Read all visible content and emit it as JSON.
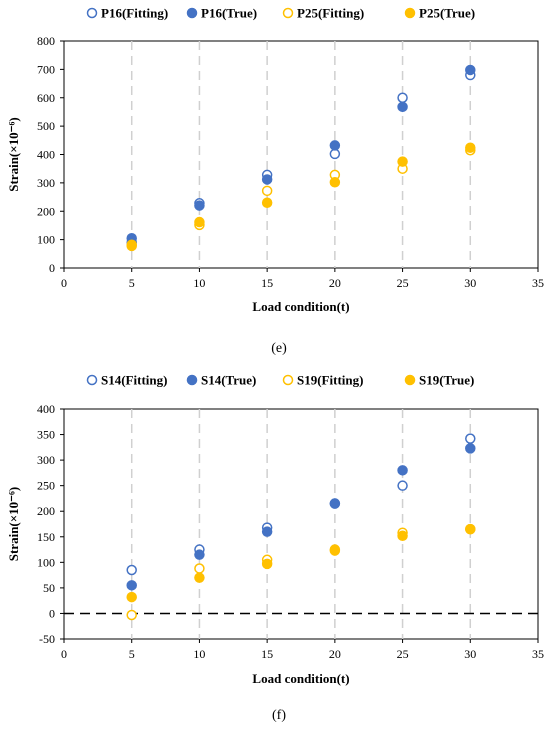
{
  "chart_data": [
    {
      "type": "scatter",
      "panel_label": "(e)",
      "xlabel": "Load condition(t)",
      "ylabel": "Strain(×10⁻⁶)",
      "xlim": [
        0,
        35
      ],
      "ylim": [
        0,
        800
      ],
      "x_ticks": [
        0,
        5,
        10,
        15,
        20,
        25,
        30,
        35
      ],
      "y_ticks": [
        0,
        100,
        200,
        300,
        400,
        500,
        600,
        700,
        800
      ],
      "legend_position": "top",
      "vertical_dashed_lines_at": [
        5,
        10,
        15,
        20,
        25,
        30
      ],
      "zero_dashed_line": false,
      "series": [
        {
          "name": "P16(Fitting)",
          "color": "#4472C4",
          "filled": false,
          "x": [
            5,
            10,
            15,
            20,
            25,
            30
          ],
          "y": [
            90,
            228,
            328,
            402,
            600,
            680
          ]
        },
        {
          "name": "P16(True)",
          "color": "#4472C4",
          "filled": true,
          "x": [
            5,
            10,
            15,
            20,
            25,
            30
          ],
          "y": [
            105,
            220,
            312,
            432,
            568,
            698
          ]
        },
        {
          "name": "P25(Fitting)",
          "color": "#FFC000",
          "filled": false,
          "x": [
            5,
            10,
            15,
            20,
            25,
            30
          ],
          "y": [
            82,
            152,
            272,
            328,
            350,
            415
          ]
        },
        {
          "name": "P25(True)",
          "color": "#FFC000",
          "filled": true,
          "x": [
            5,
            10,
            15,
            20,
            25,
            30
          ],
          "y": [
            78,
            162,
            230,
            302,
            375,
            424
          ]
        }
      ]
    },
    {
      "type": "scatter",
      "panel_label": "(f)",
      "xlabel": "Load condition(t)",
      "ylabel": "Strain(×10⁻⁶)",
      "xlim": [
        0,
        35
      ],
      "ylim": [
        -50,
        400
      ],
      "x_ticks": [
        0,
        5,
        10,
        15,
        20,
        25,
        30,
        35
      ],
      "y_ticks": [
        -50,
        0,
        50,
        100,
        150,
        200,
        250,
        300,
        350,
        400
      ],
      "legend_position": "top",
      "vertical_dashed_lines_at": [
        5,
        10,
        15,
        20,
        25,
        30
      ],
      "zero_dashed_line": true,
      "series": [
        {
          "name": "S14(Fitting)",
          "color": "#4472C4",
          "filled": false,
          "x": [
            5,
            10,
            15,
            20,
            25,
            30
          ],
          "y": [
            85,
            125,
            168,
            215,
            250,
            342
          ]
        },
        {
          "name": "S14(True)",
          "color": "#4472C4",
          "filled": true,
          "x": [
            5,
            10,
            15,
            20,
            25,
            30
          ],
          "y": [
            55,
            115,
            160,
            215,
            280,
            323
          ]
        },
        {
          "name": "S19(Fitting)",
          "color": "#FFC000",
          "filled": false,
          "x": [
            5,
            10,
            15,
            20,
            25,
            30
          ],
          "y": [
            -3,
            88,
            105,
            125,
            158,
            165
          ]
        },
        {
          "name": "S19(True)",
          "color": "#FFC000",
          "filled": true,
          "x": [
            5,
            10,
            15,
            20,
            25,
            30
          ],
          "y": [
            32,
            70,
            97,
            123,
            152,
            165
          ]
        }
      ]
    }
  ]
}
